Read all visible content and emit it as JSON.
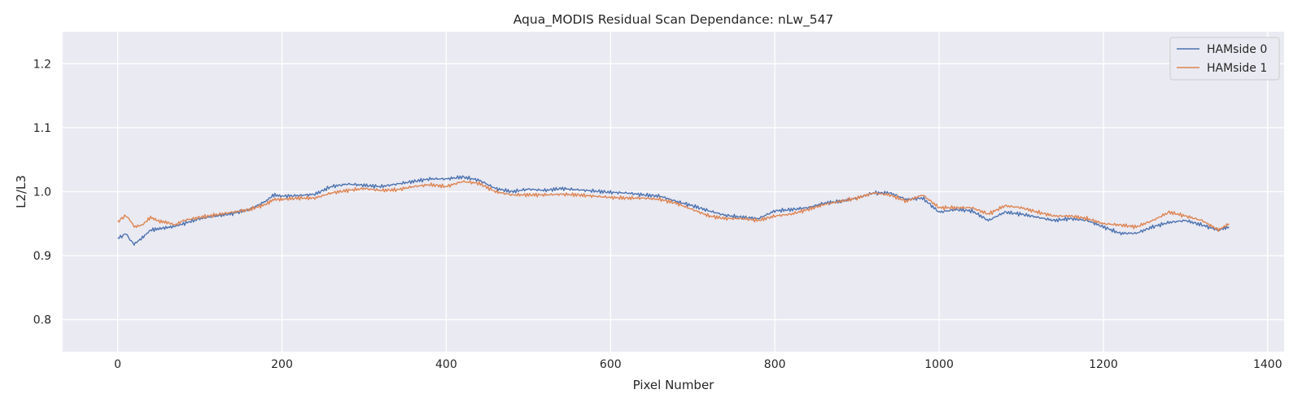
{
  "chart_data": {
    "type": "line",
    "title": "Aqua_MODIS Residual Scan Dependance: nLw_547",
    "xlabel": "Pixel Number",
    "ylabel": "L2/L3",
    "xlim": [
      -67,
      1420
    ],
    "ylim": [
      0.75,
      1.25
    ],
    "xticks": [
      0,
      200,
      400,
      600,
      800,
      1000,
      1200,
      1400
    ],
    "yticks": [
      0.8,
      0.9,
      1.0,
      1.1,
      1.2
    ],
    "xtick_labels": [
      "0",
      "200",
      "400",
      "600",
      "800",
      "1000",
      "1200",
      "1400"
    ],
    "ytick_labels": [
      "0.8",
      "0.9",
      "1.0",
      "1.1",
      "1.2"
    ],
    "grid": true,
    "legend": "top-right",
    "background": "#eaeaf2",
    "series": [
      {
        "name": "HAMside 0",
        "color": "#4c72b0",
        "x": [
          0,
          5,
          10,
          15,
          20,
          30,
          40,
          50,
          60,
          70,
          80,
          100,
          120,
          140,
          160,
          180,
          190,
          200,
          220,
          240,
          260,
          280,
          300,
          320,
          340,
          360,
          380,
          400,
          420,
          440,
          460,
          480,
          500,
          520,
          540,
          560,
          580,
          600,
          620,
          640,
          660,
          680,
          700,
          720,
          740,
          760,
          780,
          800,
          820,
          840,
          860,
          880,
          900,
          920,
          940,
          960,
          980,
          1000,
          1020,
          1040,
          1060,
          1080,
          1100,
          1120,
          1140,
          1160,
          1180,
          1200,
          1220,
          1240,
          1260,
          1280,
          1300,
          1320,
          1340,
          1353
        ],
        "values": [
          0.928,
          0.93,
          0.935,
          0.925,
          0.918,
          0.928,
          0.94,
          0.942,
          0.944,
          0.946,
          0.95,
          0.958,
          0.962,
          0.966,
          0.972,
          0.985,
          0.995,
          0.993,
          0.994,
          0.996,
          1.008,
          1.012,
          1.01,
          1.008,
          1.012,
          1.016,
          1.02,
          1.02,
          1.023,
          1.018,
          1.005,
          1.0,
          1.004,
          1.002,
          1.005,
          1.003,
          1.001,
          0.999,
          0.998,
          0.995,
          0.993,
          0.985,
          0.978,
          0.97,
          0.963,
          0.96,
          0.958,
          0.97,
          0.972,
          0.975,
          0.982,
          0.985,
          0.99,
          0.998,
          0.998,
          0.988,
          0.99,
          0.968,
          0.972,
          0.97,
          0.955,
          0.968,
          0.965,
          0.96,
          0.955,
          0.958,
          0.955,
          0.945,
          0.935,
          0.935,
          0.945,
          0.952,
          0.955,
          0.948,
          0.94,
          0.945
        ]
      },
      {
        "name": "HAMside 1",
        "color": "#dd8452",
        "x": [
          0,
          5,
          10,
          15,
          20,
          30,
          40,
          50,
          60,
          70,
          80,
          100,
          120,
          140,
          160,
          180,
          190,
          200,
          220,
          240,
          260,
          280,
          300,
          320,
          340,
          360,
          380,
          400,
          420,
          440,
          460,
          480,
          500,
          520,
          540,
          560,
          580,
          600,
          620,
          640,
          660,
          680,
          700,
          720,
          740,
          760,
          780,
          800,
          820,
          840,
          860,
          880,
          900,
          920,
          940,
          960,
          980,
          1000,
          1020,
          1040,
          1060,
          1080,
          1100,
          1120,
          1140,
          1160,
          1180,
          1200,
          1220,
          1240,
          1260,
          1280,
          1300,
          1320,
          1340,
          1353
        ],
        "values": [
          0.952,
          0.958,
          0.962,
          0.955,
          0.945,
          0.948,
          0.96,
          0.954,
          0.952,
          0.948,
          0.955,
          0.96,
          0.964,
          0.968,
          0.972,
          0.98,
          0.988,
          0.988,
          0.99,
          0.99,
          0.998,
          1.002,
          1.005,
          1.002,
          1.003,
          1.008,
          1.011,
          1.008,
          1.016,
          1.013,
          1.0,
          0.995,
          0.995,
          0.995,
          0.996,
          0.995,
          0.993,
          0.991,
          0.99,
          0.99,
          0.988,
          0.982,
          0.972,
          0.962,
          0.958,
          0.958,
          0.955,
          0.962,
          0.965,
          0.972,
          0.98,
          0.985,
          0.99,
          0.998,
          0.995,
          0.985,
          0.995,
          0.975,
          0.975,
          0.975,
          0.965,
          0.978,
          0.975,
          0.968,
          0.962,
          0.962,
          0.958,
          0.95,
          0.948,
          0.945,
          0.955,
          0.968,
          0.962,
          0.955,
          0.94,
          0.95
        ]
      }
    ]
  }
}
